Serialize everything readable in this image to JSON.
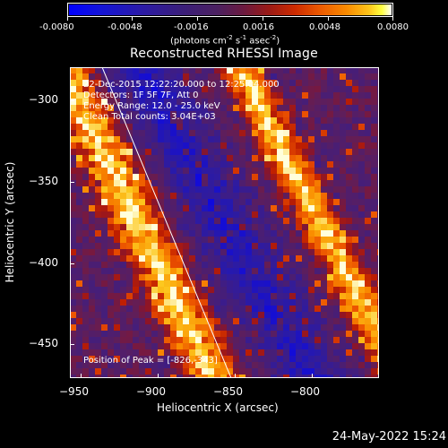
{
  "colorbar": {
    "tick_labels": [
      "-0.0080",
      "-0.0048",
      "-0.0016",
      "0.0016",
      "0.0048",
      "0.0080"
    ],
    "units_prefix": "(photons cm",
    "units_exp1": "-2",
    "units_mid": " s",
    "units_exp2": "-1",
    "units_mid2": " asec",
    "units_exp3": "-2",
    "units_suffix": ")"
  },
  "title": "Reconstructed RHESSI Image",
  "annotations": {
    "time_range": "22-Dec-2015 12:22:20.000 to 12:25:04.000",
    "detectors": "Detectors: 1F 5F 7F, Att 0",
    "energy": "Energy Range: 12.0 - 25.0 keV",
    "clean": "Clean   Total counts: 3.04E+03",
    "peak": "Position of Peak = [-826,-343]"
  },
  "axes": {
    "xlabel": "Heliocentric X (arcsec)",
    "ylabel": "Heliocentric Y (arcsec)",
    "xticks": [
      "−950",
      "−900",
      "−850",
      "−800"
    ],
    "yticks": [
      "−300",
      "−350",
      "−400",
      "−450"
    ],
    "xrange": [
      -950,
      -828
    ],
    "yrange": [
      -472,
      -280
    ]
  },
  "colors": {
    "background": "#000000",
    "limb_line": "#ffffff"
  },
  "footer_date": "24-May-2022 15:24"
}
